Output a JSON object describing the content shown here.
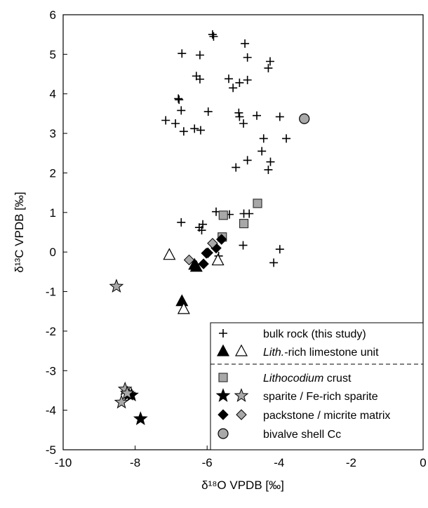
{
  "chart_data": {
    "type": "scatter",
    "xlabel": "δ¹⁸O VPDB [‰]",
    "ylabel": "δ¹³C VPDB [‰]",
    "xlim": [
      -10,
      0
    ],
    "ylim": [
      -5,
      6
    ],
    "xticks": [
      "-10",
      "-8",
      "-6",
      "-4",
      "-2",
      "0"
    ],
    "yticks": [
      "-5",
      "-4",
      "-3",
      "-2",
      "-1",
      "0",
      "1",
      "2",
      "3",
      "4",
      "5",
      "6"
    ],
    "grid": false,
    "legend_position": "bottom-right",
    "legend": [
      {
        "label": "bulk rock (this study)",
        "italic_prefix": ""
      },
      {
        "label": "-rich limestone unit",
        "italic_prefix": "Lith."
      },
      {
        "label": " crust",
        "italic_prefix": "Lithocodium"
      },
      {
        "label": "sparite / Fe-rich sparite",
        "italic_prefix": ""
      },
      {
        "label": "packstone / micrite matrix",
        "italic_prefix": ""
      },
      {
        "label": "bivalve shell Cc",
        "italic_prefix": ""
      }
    ],
    "series": [
      {
        "name": "bulk rock (this study)",
        "marker": "plus",
        "color": "#000000",
        "points": [
          [
            -5.85,
            5.5
          ],
          [
            -5.82,
            5.45
          ],
          [
            -4.95,
            5.27
          ],
          [
            -4.88,
            4.92
          ],
          [
            -6.7,
            5.02
          ],
          [
            -6.2,
            4.98
          ],
          [
            -4.25,
            4.82
          ],
          [
            -4.3,
            4.65
          ],
          [
            -6.3,
            4.45
          ],
          [
            -6.2,
            4.37
          ],
          [
            -5.4,
            4.38
          ],
          [
            -5.28,
            4.15
          ],
          [
            -5.1,
            4.28
          ],
          [
            -4.88,
            4.35
          ],
          [
            -6.8,
            3.88
          ],
          [
            -6.78,
            3.85
          ],
          [
            -6.72,
            3.58
          ],
          [
            -5.97,
            3.55
          ],
          [
            -5.12,
            3.52
          ],
          [
            -5.1,
            3.42
          ],
          [
            -4.62,
            3.45
          ],
          [
            -3.98,
            3.42
          ],
          [
            -7.15,
            3.33
          ],
          [
            -6.88,
            3.25
          ],
          [
            -6.35,
            3.12
          ],
          [
            -6.65,
            3.05
          ],
          [
            -6.18,
            3.08
          ],
          [
            -4.99,
            3.25
          ],
          [
            -4.43,
            2.87
          ],
          [
            -3.8,
            2.87
          ],
          [
            -4.48,
            2.55
          ],
          [
            -4.88,
            2.32
          ],
          [
            -4.24,
            2.28
          ],
          [
            -4.3,
            2.08
          ],
          [
            -5.2,
            2.14
          ],
          [
            -5.75,
            1.02
          ],
          [
            -5.38,
            0.95
          ],
          [
            -4.98,
            0.97
          ],
          [
            -4.83,
            0.97
          ],
          [
            -6.12,
            0.7
          ],
          [
            -6.72,
            0.75
          ],
          [
            -6.15,
            0.55
          ],
          [
            -6.22,
            0.62
          ],
          [
            -5.68,
            -0.1
          ],
          [
            -5.0,
            0.17
          ],
          [
            -3.98,
            0.07
          ],
          [
            -4.15,
            -0.27
          ]
        ]
      },
      {
        "name": "Lith.-rich limestone unit (filled)",
        "marker": "triangle",
        "color": "#000000",
        "fill": "#000000",
        "points": [
          [
            -6.7,
            -1.25
          ],
          [
            -6.3,
            -0.38
          ],
          [
            -6.35,
            -0.33
          ]
        ]
      },
      {
        "name": "Lith.-rich limestone unit (open)",
        "marker": "triangle",
        "color": "#000000",
        "fill": "#ffffff",
        "points": [
          [
            -6.65,
            -1.45
          ],
          [
            -7.05,
            -0.08
          ],
          [
            -5.7,
            -0.22
          ]
        ]
      },
      {
        "name": "Lithocodium crust",
        "marker": "square",
        "color": "#333333",
        "fill": "#a8a8a8",
        "points": [
          [
            -5.55,
            0.93
          ],
          [
            -4.6,
            1.23
          ],
          [
            -4.98,
            0.72
          ],
          [
            -5.58,
            0.38
          ]
        ]
      },
      {
        "name": "sparite",
        "marker": "star",
        "color": "#000000",
        "fill": "#000000",
        "points": [
          [
            -7.85,
            -4.22
          ],
          [
            -8.1,
            -3.62
          ],
          [
            -8.18,
            -3.6
          ]
        ]
      },
      {
        "name": "Fe-rich sparite",
        "marker": "star",
        "color": "#000000",
        "fill": "#a8a8a8",
        "points": [
          [
            -8.52,
            -0.87
          ],
          [
            -8.28,
            -3.47
          ],
          [
            -8.22,
            -3.57
          ],
          [
            -8.38,
            -3.8
          ]
        ]
      },
      {
        "name": "packstone",
        "marker": "diamond",
        "color": "#000000",
        "fill": "#000000",
        "points": [
          [
            -6.02,
            -0.03
          ],
          [
            -5.6,
            0.32
          ],
          [
            -5.98,
            -0.02
          ],
          [
            -5.75,
            0.1
          ],
          [
            -6.1,
            -0.3
          ]
        ]
      },
      {
        "name": "micrite matrix",
        "marker": "diamond",
        "color": "#000000",
        "fill": "#a8a8a8",
        "points": [
          [
            -6.5,
            -0.2
          ],
          [
            -5.85,
            0.22
          ]
        ]
      },
      {
        "name": "bivalve shell Cc",
        "marker": "circle",
        "color": "#000000",
        "fill": "#a8a8a8",
        "points": [
          [
            -3.3,
            3.37
          ]
        ]
      }
    ]
  }
}
